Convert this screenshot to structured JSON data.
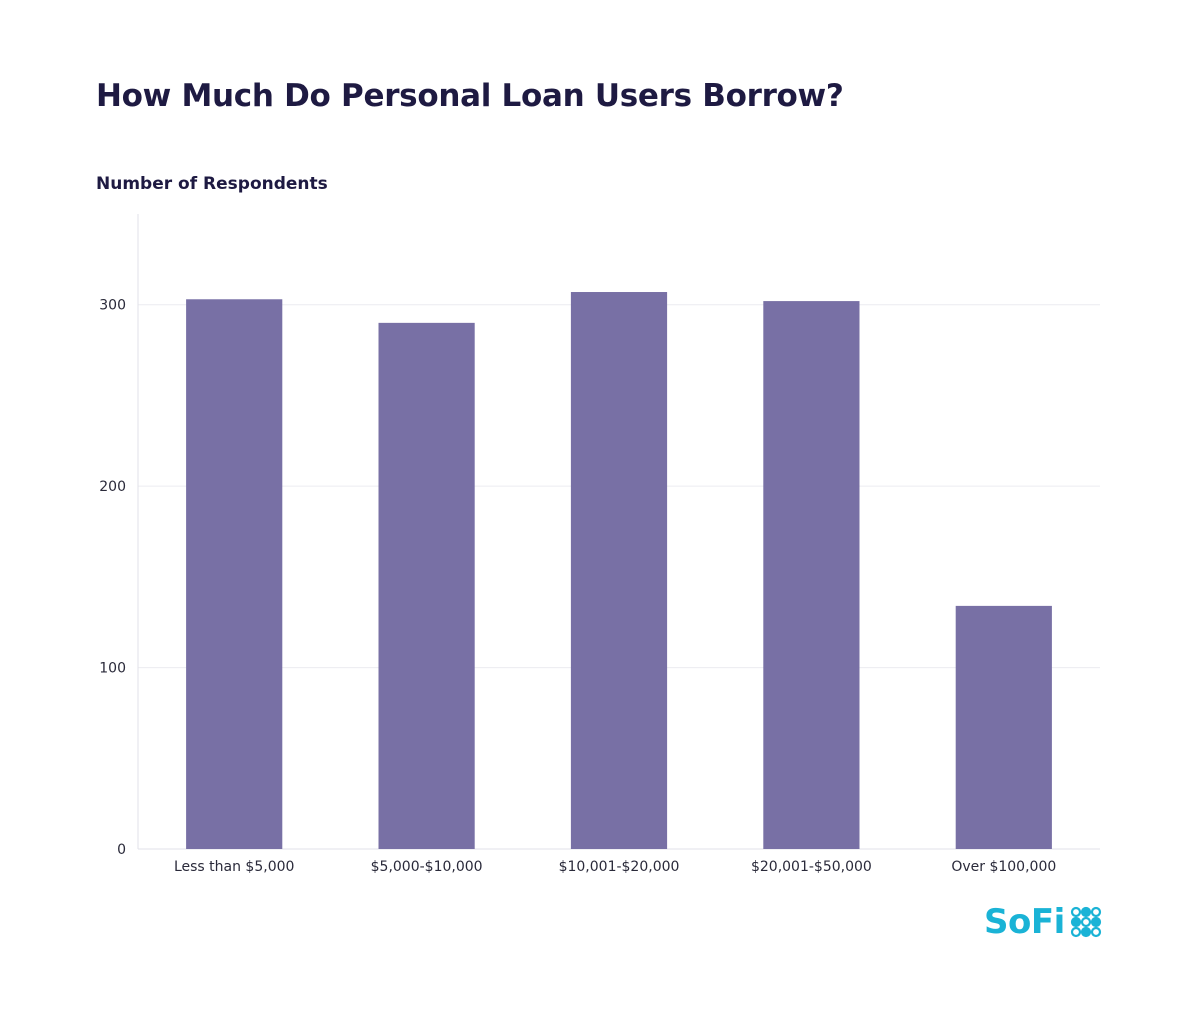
{
  "chart_data": {
    "type": "bar",
    "title": "How Much Do Personal Loan Users Borrow?",
    "ylabel": "Number of Respondents",
    "xlabel": "",
    "categories": [
      "Less than $5,000",
      "$5,000-$10,000",
      "$10,001-$20,000",
      "$20,001-$50,000",
      "Over $100,000"
    ],
    "values": [
      303,
      290,
      307,
      302,
      134
    ],
    "ylim": [
      0,
      350
    ],
    "yticks": [
      0,
      100,
      200,
      300
    ],
    "grid": true,
    "bar_color": "#7870a5"
  },
  "brand": {
    "logo_text": "SoFi",
    "logo_color": "#1ab3d6",
    "logo_icon": "sofi-dots-icon"
  }
}
